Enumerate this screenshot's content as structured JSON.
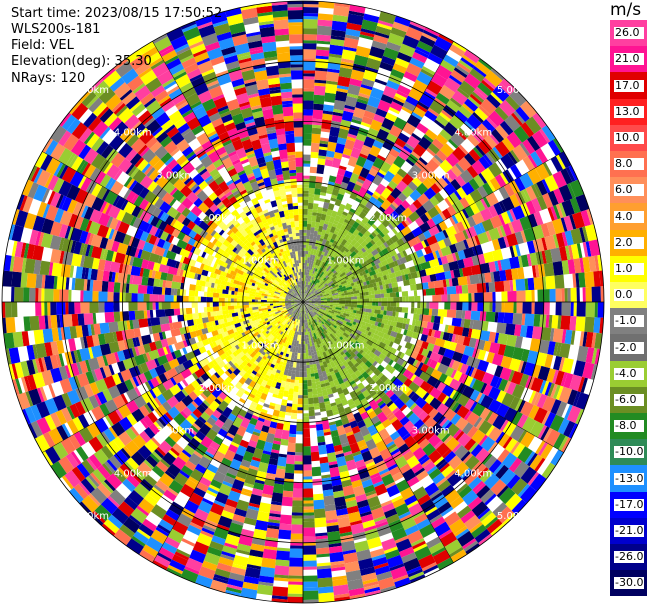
{
  "chart_data": {
    "type": "ppi",
    "info": {
      "start_time": "Start time: 2023/08/15 17:50:52",
      "instrument": "WLS200s-181",
      "field": "Field: VEL",
      "elevation": "Elevation(deg): 35.30",
      "nrays": "NRays: 120"
    },
    "range_rings": [
      {
        "label": "1.00km",
        "km": 1
      },
      {
        "label": "2.00km",
        "km": 2
      },
      {
        "label": "3.00km",
        "km": 3
      },
      {
        "label": "4.00km",
        "km": 4
      },
      {
        "label": "5.00km",
        "km": 5
      }
    ],
    "max_range_km": 5.0,
    "nrays": 120,
    "colorbar": {
      "unit": "m/s",
      "ticks": [
        "26.0",
        "21.0",
        "17.0",
        "13.0",
        "10.0",
        "8.0",
        "6.0",
        "4.0",
        "2.0",
        "1.0",
        "0.0",
        "-1.0",
        "-2.0",
        "-4.0",
        "-6.0",
        "-8.0",
        "-10.0",
        "-13.0",
        "-17.0",
        "-21.0",
        "-26.0",
        "-30.0"
      ],
      "colors": [
        "#ff3fa0",
        "#ff1493",
        "#e00000",
        "#ff2020",
        "#ff4a4a",
        "#ff7050",
        "#ff8f5a",
        "#ff9f30",
        "#ffb000",
        "#ffff00",
        "#ffff60",
        "#808080",
        "#707070",
        "#9acd32",
        "#6b8e23",
        "#228b22",
        "#2e8b57",
        "#1e90ff",
        "#0000ff",
        "#0000cd",
        "#00008b",
        "#000060"
      ]
    }
  }
}
